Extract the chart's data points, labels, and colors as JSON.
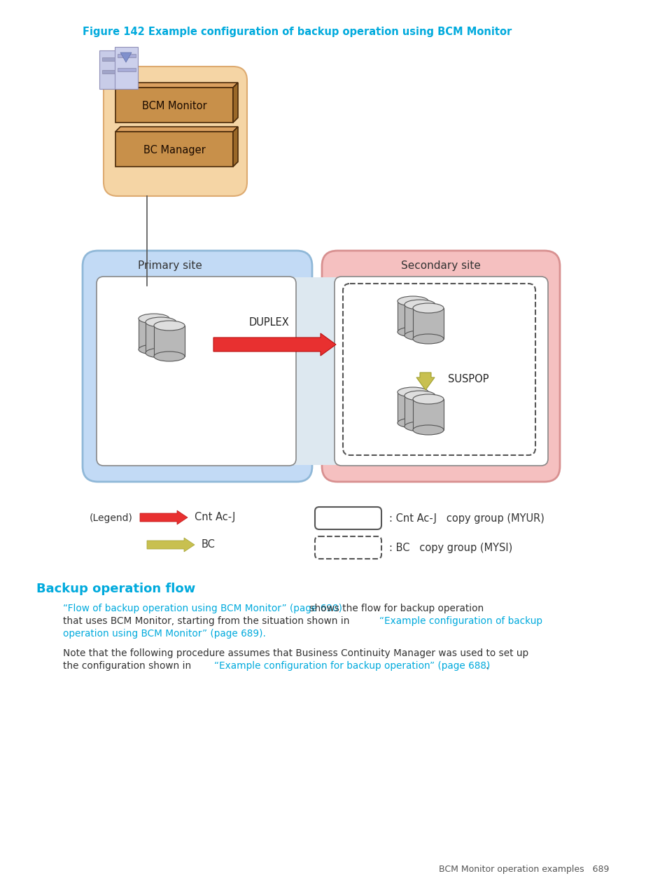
{
  "title": "Figure 142 Example configuration of backup operation using BCM Monitor",
  "title_color": "#00AADD",
  "bg_color": "#ffffff",
  "section_heading": "Backup operation flow",
  "section_heading_color": "#00AADD",
  "para1_link": "“Flow of backup operation using BCM Monitor” (page 690)",
  "para1_link_color": "#00AADD",
  "para1_rest": " shows the flow for backup operation",
  "para1_line2a": "that uses BCM Monitor, starting from the situation shown in ",
  "para1_link2": "“Example configuration of backup",
  "para1_line3a": "operation using BCM Monitor” (page 689).",
  "para2_line1": "Note that the following procedure assumes that Business Continuity Manager was used to set up",
  "para2_line2a": "the configuration shown in ",
  "para2_link": "“Example configuration for backup operation” (page 688)",
  "para2_link_color": "#00AADD",
  "para2_end": ".",
  "footer_text": "BCM Monitor operation examples   689",
  "primary_site_label": "Primary site",
  "secondary_site_label": "Secondary site",
  "duplex_label": "DUPLEX",
  "suspop_label": "SUSPOP",
  "bcm_monitor_label": "BCM Monitor",
  "bc_manager_label": "BC Manager",
  "legend_cnt_acj": "Cnt Ac-J",
  "legend_bc": "BC",
  "legend_cnt_copy": ": Cnt Ac-J   copy group (MYUR)",
  "legend_bc_copy": ": BC   copy group (MYSI)",
  "legend_label": "(Legend)"
}
